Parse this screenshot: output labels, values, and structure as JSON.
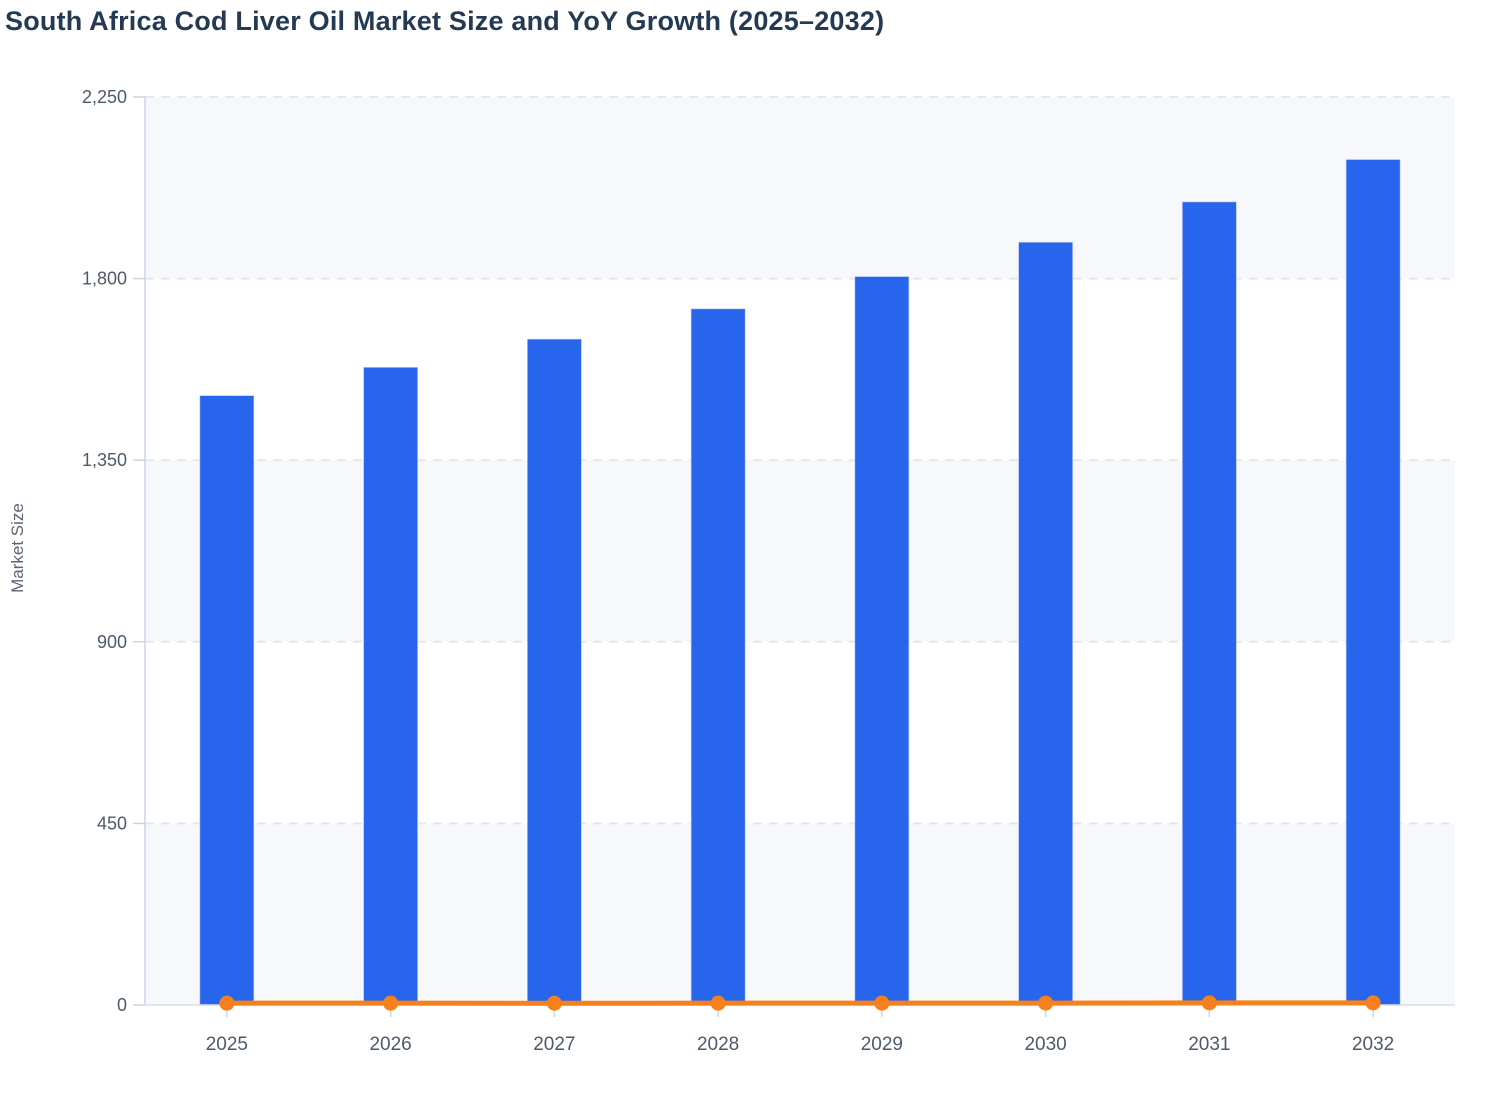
{
  "title": "South Africa Cod Liver Oil Market Size and YoY Growth (2025–2032)",
  "y_axis": {
    "title": "Market Size",
    "min": 0,
    "max": 2250,
    "ticks": [
      {
        "value": 0,
        "label": "0"
      },
      {
        "value": 450,
        "label": "450"
      },
      {
        "value": 900,
        "label": "900"
      },
      {
        "value": 1350,
        "label": "1,350"
      },
      {
        "value": 1800,
        "label": "1,800"
      },
      {
        "value": 2250,
        "label": "2,250"
      }
    ]
  },
  "chart_data": {
    "type": "bar",
    "title": "South Africa Cod Liver Oil Market Size and YoY Growth (2025–2032)",
    "xlabel": "",
    "ylabel": "Market Size",
    "ylim": [
      0,
      2250
    ],
    "grid": "dashed horizontal",
    "legend": "none",
    "categories": [
      "2025",
      "2026",
      "2027",
      "2028",
      "2029",
      "2030",
      "2031",
      "2032"
    ],
    "series": [
      {
        "name": "Market Size",
        "type": "bar",
        "color": "#2765ec",
        "values": [
          1510,
          1580,
          1650,
          1725,
          1805,
          1890,
          1990,
          2095
        ]
      },
      {
        "name": "YoY Growth",
        "type": "line",
        "color": "#f6801b",
        "note": "flat line with markers hugging the zero baseline of the left axis; percentage values not labeled on chart",
        "values": [
          4.5,
          4.6,
          4.4,
          4.5,
          4.6,
          4.7,
          5.3,
          5.3
        ]
      }
    ]
  },
  "colors": {
    "bar": "#2765ec",
    "line": "#f6801b",
    "title_text": "#243a52",
    "tick_text": "#4d5a6b",
    "axis_line": "#c9d3ea",
    "baseline": "#d8dde5",
    "gridline": "#e4e7ec",
    "band_fill": "#f7f8fb",
    "tick_mark": "#ccd4e0"
  }
}
